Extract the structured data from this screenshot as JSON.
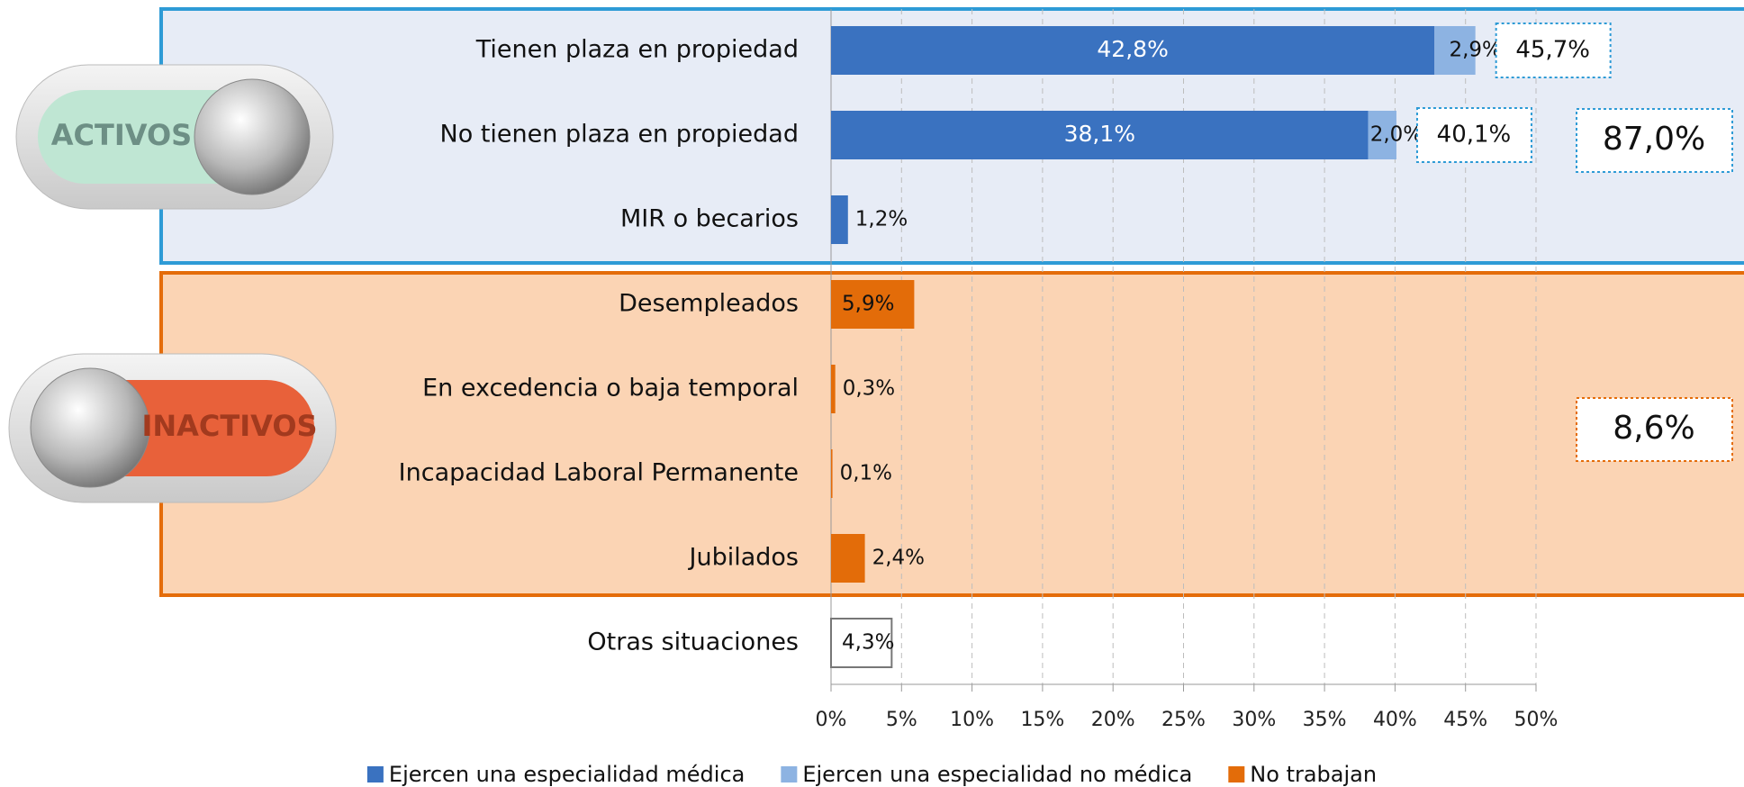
{
  "chart_data": {
    "type": "bar",
    "orientation": "horizontal",
    "stacked": true,
    "categories": [
      "Tienen plaza en propiedad",
      "No tienen plaza en propiedad",
      "MIR o becarios",
      "Desempleados",
      "En excedencia o baja temporal",
      "Incapacidad Laboral Permanente",
      "Jubilados",
      "Otras situaciones"
    ],
    "series": [
      {
        "name": "Ejercen una especialidad médica",
        "color": "#3a72c0",
        "values": [
          42.8,
          38.1,
          1.2,
          null,
          null,
          null,
          null,
          null
        ],
        "value_labels": [
          "42,8%",
          "38,1%",
          "1,2%",
          null,
          null,
          null,
          null,
          null
        ]
      },
      {
        "name": "Ejercen una especialidad no médica",
        "color": "#8db3e2",
        "values": [
          2.9,
          2.0,
          null,
          null,
          null,
          null,
          null,
          null
        ],
        "value_labels": [
          "2,9%",
          "2,0%",
          null,
          null,
          null,
          null,
          null,
          null
        ]
      },
      {
        "name": "No trabajan",
        "color": "#e36c09",
        "values": [
          null,
          null,
          null,
          5.9,
          0.3,
          0.1,
          2.4,
          null
        ],
        "value_labels": [
          null,
          null,
          null,
          "5,9%",
          "0,3%",
          "0,1%",
          "2,4%",
          null
        ]
      },
      {
        "color": "#ffffff",
        "values": [
          null,
          null,
          null,
          null,
          null,
          null,
          null,
          4.3
        ],
        "value_labels": [
          null,
          null,
          null,
          null,
          null,
          null,
          null,
          "4,3%"
        ]
      }
    ],
    "row_totals": {
      "values": [
        45.7,
        40.1
      ],
      "value_labels": [
        "45,7%",
        "40,1%"
      ]
    },
    "groups": [
      {
        "name": "ACTIVOS",
        "total": 87.0,
        "total_label": "87,0%"
      },
      {
        "name": "INACTIVOS",
        "total": 8.6,
        "total_label": "8,6%"
      }
    ],
    "xlim": [
      0,
      50
    ],
    "xticks": [
      {
        "value": 0,
        "label": "0%"
      },
      {
        "value": 5,
        "label": "5%"
      },
      {
        "value": 10,
        "label": "10%"
      },
      {
        "value": 15,
        "label": "15%"
      },
      {
        "value": 20,
        "label": "20%"
      },
      {
        "value": 25,
        "label": "25%"
      },
      {
        "value": 30,
        "label": "30%"
      },
      {
        "value": 35,
        "label": "35%"
      },
      {
        "value": 40,
        "label": "40%"
      },
      {
        "value": 45,
        "label": "45%"
      },
      {
        "value": 50,
        "label": "50%"
      }
    ],
    "grid": true,
    "legend": "bottom"
  }
}
